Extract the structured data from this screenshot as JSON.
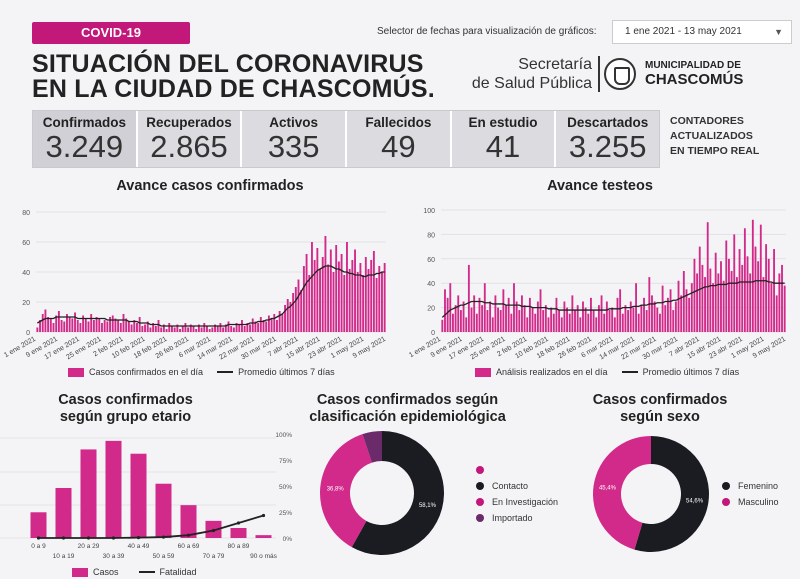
{
  "header": {
    "tag": "COVID-19",
    "title_line1": "SITUACIÓN DEL CORONAVIRUS",
    "title_line2": "EN LA CIUDAD DE CHASCOMÚS.",
    "selector_label": "Selector de fechas para visualización de gráficos:",
    "selector_value": "1 ene 2021 - 13 may 2021",
    "secretaria_line1": "Secretaría",
    "secretaria_line2": "de Salud Pública",
    "muni_line1": "MUNICIPALIDAD DE",
    "muni_line2": "CHASCOMÚS"
  },
  "counters": [
    {
      "label": "Confirmados",
      "value": "3.249"
    },
    {
      "label": "Recuperados",
      "value": "2.865"
    },
    {
      "label": "Activos",
      "value": "335"
    },
    {
      "label": "Fallecidos",
      "value": "49"
    },
    {
      "label": "En estudio",
      "value": "41"
    },
    {
      "label": "Descartados",
      "value": "3.255"
    }
  ],
  "realtime_note": [
    "CONTADORES",
    "ACTUALIZADOS",
    "EN TIEMPO REAL"
  ],
  "colors": {
    "accent": "#c2187a",
    "bar": "#d12a8a",
    "line": "#222222",
    "dark": "#1b1b22",
    "purple": "#6b2b6b"
  },
  "chart_data": [
    {
      "type": "bar",
      "title": "Avance casos confirmados",
      "ylim": [
        0,
        80
      ],
      "yticks": [
        0,
        20,
        40,
        60,
        80
      ],
      "xticks": [
        "1 ene 2021",
        "9 ene 2021",
        "17 ene 2021",
        "25 ene 2021",
        "2 feb 2021",
        "10 feb 2021",
        "18 feb 2021",
        "26 feb 2021",
        "6 mar 2021",
        "14 mar 2021",
        "22 mar 2021",
        "30 mar 2021",
        "7 abr 2021",
        "15 abr 2021",
        "23 abr 2021",
        "1 may 2021",
        "9 may 2021"
      ],
      "series": [
        {
          "name": "Casos confirmados en el día",
          "values": [
            3,
            8,
            12,
            15,
            10,
            9,
            6,
            11,
            14,
            8,
            7,
            12,
            10,
            9,
            13,
            8,
            6,
            11,
            9,
            7,
            12,
            8,
            10,
            9,
            6,
            8,
            7,
            10,
            11,
            9,
            8,
            6,
            12,
            9,
            7,
            5,
            8,
            6,
            10,
            4,
            5,
            7,
            3,
            6,
            4,
            8,
            3,
            5,
            2,
            6,
            4,
            3,
            5,
            2,
            4,
            6,
            3,
            5,
            4,
            2,
            5,
            3,
            6,
            4,
            2,
            3,
            5,
            4,
            6,
            3,
            5,
            7,
            4,
            3,
            6,
            5,
            8,
            4,
            6,
            5,
            9,
            7,
            6,
            10,
            8,
            7,
            11,
            9,
            12,
            8,
            14,
            12,
            18,
            22,
            20,
            26,
            30,
            35,
            28,
            44,
            52,
            38,
            60,
            48,
            56,
            42,
            50,
            64,
            45,
            55,
            40,
            58,
            47,
            52,
            38,
            60,
            42,
            48,
            55,
            40,
            46,
            38,
            50,
            42,
            48,
            54,
            36,
            44,
            40,
            46
          ]
        },
        {
          "name": "Promedio últimos 7 días",
          "values": [
            6,
            7,
            8,
            9,
            9,
            9,
            9,
            10,
            10,
            10,
            10,
            10,
            10,
            10,
            10,
            9,
            9,
            9,
            9,
            9,
            9,
            9,
            9,
            9,
            9,
            9,
            8,
            8,
            8,
            8,
            8,
            8,
            8,
            8,
            7,
            7,
            7,
            7,
            6,
            6,
            6,
            6,
            5,
            5,
            5,
            5,
            4,
            4,
            4,
            4,
            4,
            4,
            4,
            4,
            4,
            4,
            4,
            4,
            4,
            4,
            4,
            4,
            4,
            4,
            4,
            4,
            4,
            4,
            4,
            4,
            4,
            5,
            5,
            5,
            5,
            5,
            5,
            5,
            5,
            6,
            6,
            6,
            7,
            7,
            7,
            8,
            8,
            9,
            9,
            10,
            11,
            12,
            14,
            16,
            17,
            19,
            21,
            24,
            27,
            30,
            33,
            35,
            37,
            39,
            41,
            42,
            43,
            44,
            44,
            44,
            43,
            42,
            42,
            41,
            40,
            40,
            39,
            39,
            38,
            38,
            38,
            37,
            37,
            38,
            38,
            38,
            39,
            39,
            40,
            40
          ]
        }
      ],
      "legend": [
        "Casos confirmados en el día",
        "Promedio últimos 7 días"
      ]
    },
    {
      "type": "bar",
      "title": "Avance testeos",
      "ylim": [
        0,
        100
      ],
      "yticks": [
        0,
        20,
        40,
        60,
        80,
        100
      ],
      "xticks": [
        "1 ene 2021",
        "9 ene 2021",
        "17 ene 2021",
        "25 ene 2021",
        "2 feb 2021",
        "10 feb 2021",
        "18 feb 2021",
        "26 feb 2021",
        "6 mar 2021",
        "14 mar 2021",
        "22 mar 2021",
        "30 mar 2021",
        "7 abr 2021",
        "15 abr 2021",
        "23 abr 2021",
        "1 may 2021",
        "9 may 2021"
      ],
      "series": [
        {
          "name": "Análisis realizados en el día",
          "values": [
            10,
            35,
            28,
            40,
            15,
            22,
            30,
            18,
            25,
            12,
            55,
            20,
            30,
            15,
            28,
            22,
            40,
            18,
            25,
            12,
            30,
            20,
            18,
            35,
            22,
            28,
            15,
            40,
            25,
            18,
            30,
            22,
            12,
            28,
            20,
            15,
            25,
            35,
            18,
            22,
            12,
            20,
            15,
            28,
            18,
            12,
            25,
            20,
            15,
            30,
            18,
            22,
            12,
            25,
            20,
            15,
            28,
            18,
            12,
            22,
            30,
            15,
            25,
            18,
            20,
            12,
            28,
            35,
            15,
            22,
            18,
            25,
            20,
            40,
            15,
            22,
            28,
            18,
            45,
            30,
            25,
            20,
            15,
            38,
            22,
            28,
            35,
            18,
            25,
            42,
            30,
            50,
            35,
            28,
            40,
            60,
            48,
            70,
            55,
            45,
            90,
            52,
            40,
            65,
            48,
            58,
            42,
            75,
            60,
            50,
            80,
            45,
            68,
            55,
            85,
            62,
            48,
            92,
            70,
            58,
            88,
            45,
            72,
            60,
            40,
            68,
            30,
            48,
            55,
            38
          ]
        },
        {
          "name": "Promedio últimos 7 días",
          "values": [
            12,
            14,
            16,
            18,
            19,
            20,
            21,
            22,
            22,
            23,
            24,
            25,
            25,
            25,
            25,
            25,
            24,
            24,
            24,
            23,
            23,
            23,
            23,
            23,
            22,
            22,
            22,
            22,
            22,
            22,
            21,
            21,
            21,
            21,
            20,
            20,
            20,
            20,
            20,
            20,
            19,
            19,
            19,
            19,
            18,
            18,
            18,
            18,
            18,
            18,
            18,
            18,
            18,
            18,
            18,
            18,
            18,
            18,
            18,
            18,
            18,
            18,
            18,
            19,
            19,
            19,
            19,
            19,
            20,
            20,
            20,
            20,
            21,
            21,
            21,
            22,
            22,
            22,
            23,
            23,
            23,
            24,
            24,
            24,
            25,
            25,
            25,
            26,
            26,
            27,
            28,
            29,
            30,
            31,
            32,
            33,
            34,
            35,
            36,
            37,
            37,
            38,
            38,
            38,
            39,
            39,
            39,
            39,
            40,
            40,
            40,
            40,
            41,
            41,
            41,
            41,
            41,
            41,
            42,
            42,
            42,
            42,
            42,
            41,
            41,
            40,
            40,
            40,
            40,
            40
          ]
        }
      ],
      "legend": [
        "Análisis realizados en el día",
        "Promedio últimos 7 días"
      ]
    },
    {
      "type": "bar",
      "title": "Casos confirmados según grupo etario",
      "categories": [
        "0 a 9",
        "10 a 19",
        "20 a 29",
        "30 a 39",
        "40 a 49",
        "50 a 59",
        "60 a 69",
        "70 a 79",
        "80 a 89",
        "90 o más"
      ],
      "series": [
        {
          "name": "Casos",
          "values": [
            180,
            350,
            620,
            680,
            590,
            380,
            230,
            120,
            70,
            20
          ]
        },
        {
          "name": "Fatalidad",
          "values": [
            0,
            0,
            0,
            0,
            0.2,
            0.5,
            1.5,
            4,
            8,
            12
          ]
        }
      ],
      "legend": [
        "Casos",
        "Fatalidad"
      ]
    },
    {
      "type": "pie",
      "title": "Casos confirmados según clasificación epidemiológica",
      "axis_ticks": [
        "100%",
        "75%",
        "50%",
        "25%",
        "0%"
      ],
      "slices": [
        {
          "label": "Contacto",
          "value": 58.1,
          "display": "58,1%"
        },
        {
          "label": "En Investigación",
          "value": 36.8,
          "display": "36,8%"
        },
        {
          "label": "Importado",
          "value": 5.1,
          "display": ""
        }
      ]
    },
    {
      "type": "pie",
      "title": "Casos confirmados según sexo",
      "slices": [
        {
          "label": "Femenino",
          "value": 54.6,
          "display": "54,6%"
        },
        {
          "label": "Masculino",
          "value": 45.4,
          "display": "45,4%"
        }
      ]
    }
  ],
  "sections": {
    "chart1_title": "Avance casos confirmados",
    "chart2_title": "Avance testeos",
    "age_title_1": "Casos confirmados",
    "age_title_2": "según grupo etario",
    "epi_title_1": "Casos confirmados según",
    "epi_title_2": "clasificación epidemiológica",
    "sex_title_1": "Casos confirmados",
    "sex_title_2": "según sexo"
  }
}
